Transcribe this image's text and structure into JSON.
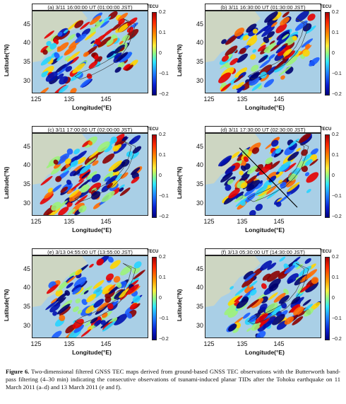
{
  "panels": [
    {
      "title": "(a) 3/11 16:00:00 UT (01:00:00 JST)"
    },
    {
      "title": "(b) 3/11 16:30:00 UT (01:30:00 JST)"
    },
    {
      "title": "(c) 3/11 17:00:00 UT (02:00:00 JST)"
    },
    {
      "title": "(d) 3/11 17:30:00 UT (02:30:00 JST)"
    },
    {
      "title": "(e) 3/13 04:55:00 UT (13:55:00 JST)"
    },
    {
      "title": "(f) 3/13 05:30:00 UT (14:30:00 JST)"
    }
  ],
  "axes": {
    "xlabel": "Longitude(°E)",
    "ylabel": "Latitude(°N)",
    "xticks": [
      "125",
      "135",
      "145"
    ],
    "yticks": [
      "45",
      "40",
      "35",
      "30"
    ]
  },
  "colorbar": {
    "unit": "TECU",
    "ticks": [
      "0.2",
      "0.1",
      "0",
      "−0.1",
      "−0.2"
    ],
    "range": [
      -0.2,
      0.2
    ]
  },
  "caption": {
    "lead": "Figure 6.",
    "text": " Two-dimensional filtered GNSS TEC maps derived from ground-based GNSS TEC observations with the Butterworth band-pass filtering (4–30 min) indicating the consecutive observations of tsunami-induced planar TIDs after the Tohoku earthquake on 11 March 2011 (a–d) and 13 March 2011 (e and f)."
  }
}
